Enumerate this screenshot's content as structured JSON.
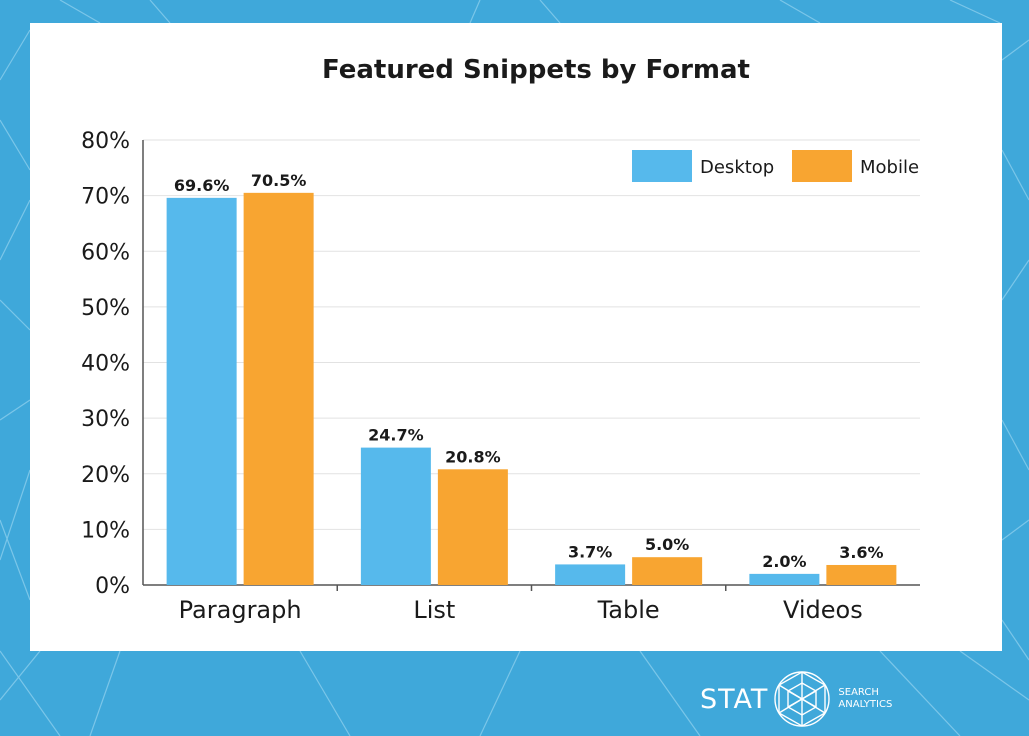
{
  "chart_data": {
    "type": "bar",
    "title": "Featured Snippets by Format",
    "categories": [
      "Paragraph",
      "List",
      "Table",
      "Videos"
    ],
    "series": [
      {
        "name": "Desktop",
        "values": [
          69.6,
          24.7,
          3.7,
          2.0
        ],
        "labels": [
          "69.6%",
          "24.7%",
          "3.7%",
          "2.0%"
        ],
        "color": "#56b9ec"
      },
      {
        "name": "Mobile",
        "values": [
          70.5,
          20.8,
          5.0,
          3.6
        ],
        "labels": [
          "70.5%",
          "20.8%",
          "5.0%",
          "3.6%"
        ],
        "color": "#f8a531"
      }
    ],
    "ylim": [
      0,
      80
    ],
    "yticks": [
      "0%",
      "10%",
      "20%",
      "30%",
      "40%",
      "50%",
      "60%",
      "70%",
      "80%"
    ],
    "grid": true,
    "legend_position": "top-right",
    "xlabel": "",
    "ylabel": ""
  },
  "branding": {
    "wordmark": "STAT",
    "tagline_line1": "SEARCH",
    "tagline_line2": "ANALYTICS",
    "icon": "geodesic-globe-icon"
  },
  "colors": {
    "background": "#3fa8da",
    "card": "#ffffff"
  }
}
